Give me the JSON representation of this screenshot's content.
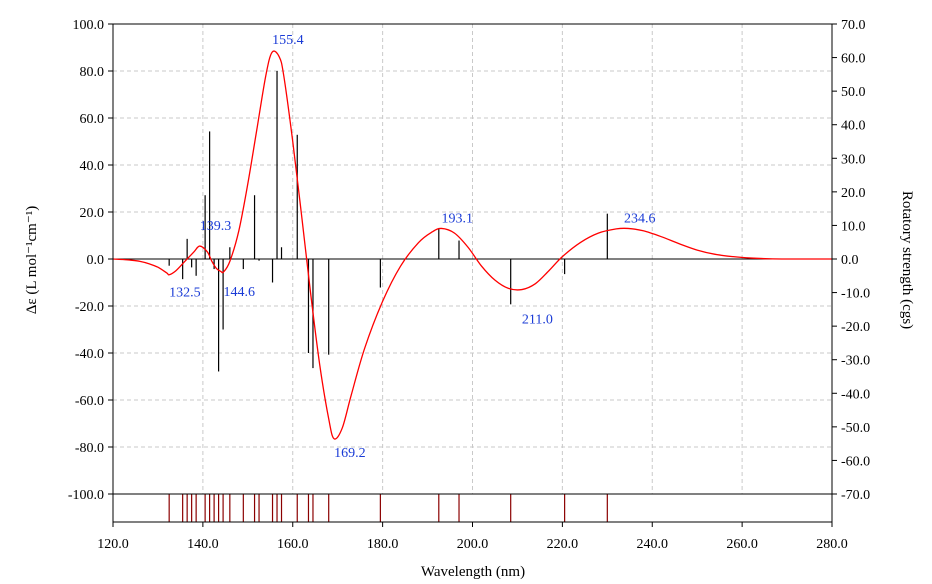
{
  "chart_data": {
    "type": "line",
    "xlabel": "Wavelength (nm)",
    "ylabel_left": "Δε (L mol⁻¹cm⁻¹)",
    "ylabel_right": "Rotatory strength (cgs)",
    "xlim": [
      120,
      280
    ],
    "ylim_left": [
      -100,
      100
    ],
    "ylim_right": [
      -70,
      70
    ],
    "x_ticks": [
      "120.0",
      "140.0",
      "160.0",
      "180.0",
      "200.0",
      "220.0",
      "240.0",
      "260.0",
      "280.0"
    ],
    "y_ticks_left": [
      "100.0",
      "80.0",
      "60.0",
      "40.0",
      "20.0",
      "0.0",
      "-20.0",
      "-40.0",
      "-60.0",
      "-80.0",
      "-100.0"
    ],
    "y_ticks_right": [
      "70.0",
      "60.0",
      "50.0",
      "40.0",
      "30.0",
      "20.0",
      "10.0",
      "0.0",
      "-10.0",
      "-20.0",
      "-30.0",
      "-40.0",
      "-50.0",
      "-60.0",
      "-70.0"
    ],
    "grid": true,
    "colors": {
      "curve": "#ff0000",
      "sticks": "#000000",
      "tick_marks": "#8b0000",
      "peak_labels": "#1a3bd6"
    },
    "curve": {
      "x": [
        120,
        122,
        124,
        126,
        128,
        130,
        132,
        132.5,
        134,
        136,
        138,
        139.3,
        141,
        142,
        143,
        144,
        144.6,
        146,
        148,
        150,
        152,
        154,
        155.4,
        157,
        158,
        160,
        162,
        164,
        166,
        168,
        169.2,
        171,
        173,
        176,
        180,
        184,
        188,
        191,
        193.1,
        196,
        199,
        202,
        205,
        208,
        211,
        214,
        217,
        220,
        224,
        228,
        232,
        234.6,
        238,
        242,
        246,
        250,
        254,
        258,
        262,
        266,
        270,
        275,
        280
      ],
      "y": [
        0,
        -0.2,
        -0.5,
        -1,
        -2,
        -3.5,
        -6,
        -6.7,
        -5,
        -1,
        3,
        5.5,
        3,
        -1,
        -4,
        -5.3,
        -5.5,
        -1,
        12,
        32,
        55,
        78,
        88,
        86,
        78,
        50,
        18,
        -15,
        -45,
        -68,
        -76.5,
        -72,
        -58,
        -38,
        -18,
        -3,
        7,
        11.5,
        13,
        11,
        5,
        -3,
        -9,
        -12.5,
        -13,
        -10.5,
        -5,
        1,
        7,
        11,
        12.8,
        13,
        12,
        9.5,
        6.5,
        3.8,
        2,
        1,
        0.4,
        0.1,
        0,
        0,
        0
      ]
    },
    "sticks": {
      "x": [
        132.5,
        135.5,
        136.5,
        137.5,
        138.5,
        140.5,
        141.5,
        142.5,
        143.5,
        144.5,
        146,
        149,
        151.5,
        152.5,
        155.5,
        156.5,
        157.5,
        161,
        163.5,
        164.5,
        168,
        179.5,
        192.5,
        197,
        208.5,
        220.5,
        230
      ],
      "rotatory_strength": [
        -2,
        -6,
        6,
        -2.5,
        -5,
        19,
        38,
        -3,
        -33.5,
        -21,
        3.5,
        -3,
        19,
        -0.5,
        -7,
        56,
        3.5,
        37,
        -28,
        -32.5,
        -28.5,
        -8.5,
        9,
        5.5,
        -13.5,
        -4.5,
        13.5
      ]
    },
    "peak_labels": [
      {
        "text": "155.4",
        "x": 155.4,
        "y": 88
      },
      {
        "text": "139.3",
        "x": 139.3,
        "y": 5.5
      },
      {
        "text": "132.5",
        "x": 132.5,
        "y": -6.7
      },
      {
        "text": "144.6",
        "x": 144.6,
        "y": -5.5
      },
      {
        "text": "169.2",
        "x": 169.2,
        "y": -76.5
      },
      {
        "text": "193.1",
        "x": 193.1,
        "y": 13
      },
      {
        "text": "211.0",
        "x": 211.0,
        "y": -13
      },
      {
        "text": "234.6",
        "x": 234.6,
        "y": 13
      }
    ]
  }
}
